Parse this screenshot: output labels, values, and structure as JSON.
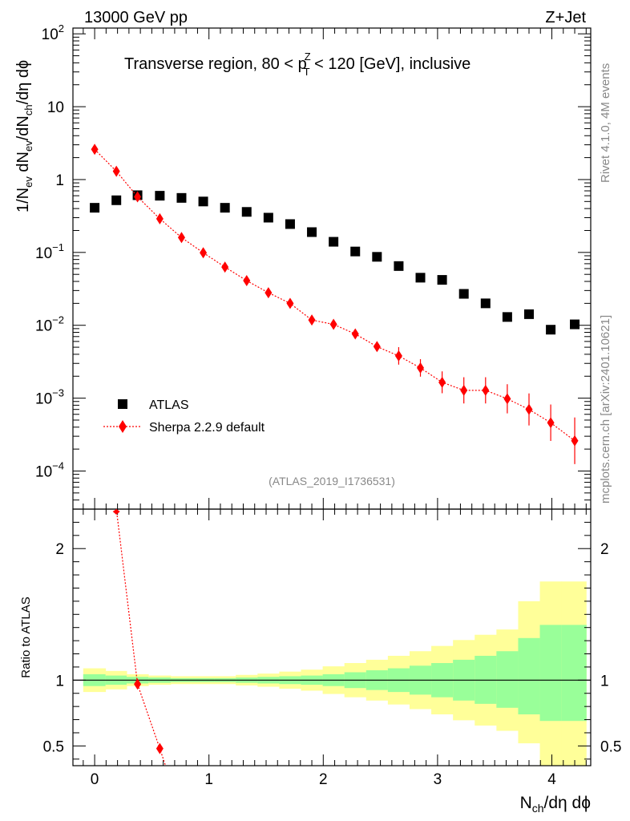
{
  "header": {
    "left": "13000 GeV pp",
    "right": "Z+Jet"
  },
  "subtitle": {
    "prefix": "Transverse region, 80 < p",
    "sup": "Z",
    "sub": "T",
    "suffix": " < 120 [GeV], inclusive"
  },
  "side_labels": {
    "rivet": "Rivet 4.1.0,  4M events",
    "mcplots": "mcplots.cern.ch [arXiv:2401.10621]"
  },
  "analysis_id": "(ATLAS_2019_I1736531)",
  "axis_labels": {
    "y_main": "1/N_ev dN_ev/dN_ch/dη dϕ",
    "y_ratio": "Ratio to ATLAS",
    "x": "N_ch/dη dϕ"
  },
  "legend": {
    "atlas": "ATLAS",
    "sherpa": "Sherpa 2.2.9 default"
  },
  "colors": {
    "data": "#000000",
    "mc": "#ff0000",
    "band_inner": "#99ff99",
    "band_outer": "#ffff99"
  },
  "chart_data": [
    {
      "type": "scatter",
      "panel": "main",
      "yscale": "log",
      "xlim": [
        -0.19,
        4.34
      ],
      "ylim": [
        3e-05,
        120
      ],
      "x_ticks": [
        0,
        1,
        2,
        3,
        4
      ],
      "y_tick_labels": [
        {
          "value": 100,
          "mant": "10",
          "exp": "2"
        },
        {
          "value": 10,
          "mant": "10",
          "exp": ""
        },
        {
          "value": 1,
          "mant": "1",
          "exp": ""
        },
        {
          "value": 0.1,
          "mant": "10",
          "exp": "−1"
        },
        {
          "value": 0.01,
          "mant": "10",
          "exp": "−2"
        },
        {
          "value": 0.001,
          "mant": "10",
          "exp": "−3"
        },
        {
          "value": 0.0001,
          "mant": "10",
          "exp": "−4"
        }
      ],
      "series": [
        {
          "name": "ATLAS",
          "marker": "square",
          "x": [
            0,
            0.19,
            0.375,
            0.57,
            0.76,
            0.95,
            1.14,
            1.33,
            1.52,
            1.71,
            1.9,
            2.09,
            2.28,
            2.47,
            2.66,
            2.85,
            3.04,
            3.23,
            3.42,
            3.61,
            3.8,
            3.99,
            4.2
          ],
          "y": [
            0.41,
            0.52,
            0.61,
            0.6,
            0.56,
            0.5,
            0.41,
            0.36,
            0.3,
            0.245,
            0.19,
            0.14,
            0.103,
            0.087,
            0.065,
            0.045,
            0.042,
            0.027,
            0.02,
            0.013,
            0.0142,
            0.0087,
            0.0103
          ]
        },
        {
          "name": "Sherpa 2.2.9 default",
          "marker": "diamond",
          "x": [
            0,
            0.19,
            0.375,
            0.57,
            0.76,
            0.95,
            1.14,
            1.33,
            1.52,
            1.71,
            1.9,
            2.09,
            2.28,
            2.47,
            2.66,
            2.85,
            3.04,
            3.23,
            3.42,
            3.61,
            3.8,
            3.99,
            4.2
          ],
          "y": [
            2.6,
            1.3,
            0.58,
            0.29,
            0.16,
            0.099,
            0.063,
            0.041,
            0.028,
            0.02,
            0.0118,
            0.0103,
            0.0076,
            0.0051,
            0.0038,
            0.0026,
            0.00165,
            0.00128,
            0.00128,
            0.00098,
            0.0007,
            0.00046,
            0.00026
          ],
          "err": [
            0,
            0,
            0,
            0,
            0,
            0,
            0,
            0,
            0,
            0,
            0,
            0,
            0,
            0,
            0.12,
            0.12,
            0.15,
            0.18,
            0.18,
            0.2,
            0.22,
            0.25,
            0.32
          ]
        }
      ]
    },
    {
      "type": "line",
      "panel": "ratio",
      "ylabel": "Ratio to ATLAS",
      "xlabel": "N_ch/dη dϕ",
      "xlim": [
        -0.19,
        4.34
      ],
      "ylim": [
        0.35,
        2.3
      ],
      "y_ticks": [
        0.5,
        1,
        2
      ],
      "y_tick_labels": [
        "0.5",
        "1",
        "2"
      ],
      "band_edges": [
        -0.1,
        0.095,
        0.28,
        0.47,
        0.665,
        0.855,
        1.045,
        1.235,
        1.425,
        1.615,
        1.805,
        1.995,
        2.185,
        2.375,
        2.565,
        2.755,
        2.945,
        3.135,
        3.325,
        3.515,
        3.705,
        3.895,
        4.085,
        4.3
      ],
      "band_inner_lo": [
        0.955,
        0.965,
        0.975,
        0.98,
        0.985,
        0.985,
        0.985,
        0.98,
        0.975,
        0.97,
        0.965,
        0.955,
        0.94,
        0.925,
        0.91,
        0.89,
        0.87,
        0.845,
        0.82,
        0.79,
        0.74,
        0.69,
        0.69
      ],
      "band_inner_hi": [
        1.045,
        1.035,
        1.025,
        1.02,
        1.015,
        1.015,
        1.015,
        1.02,
        1.025,
        1.03,
        1.035,
        1.045,
        1.06,
        1.075,
        1.09,
        1.11,
        1.13,
        1.155,
        1.185,
        1.22,
        1.32,
        1.42,
        1.42
      ],
      "band_outer_lo": [
        0.91,
        0.93,
        0.955,
        0.965,
        0.97,
        0.97,
        0.97,
        0.96,
        0.95,
        0.935,
        0.92,
        0.895,
        0.87,
        0.845,
        0.815,
        0.78,
        0.74,
        0.695,
        0.655,
        0.615,
        0.52,
        0.35,
        0.35
      ],
      "band_outer_hi": [
        1.09,
        1.07,
        1.045,
        1.035,
        1.03,
        1.03,
        1.03,
        1.04,
        1.05,
        1.065,
        1.08,
        1.105,
        1.13,
        1.155,
        1.185,
        1.22,
        1.26,
        1.305,
        1.345,
        1.385,
        1.6,
        1.75,
        1.75
      ],
      "ref_line": 1,
      "series": [
        {
          "name": "Sherpa 2.2.9 default / ATLAS",
          "x": [
            0.19,
            0.375,
            0.57,
            0.62
          ],
          "y": [
            2.3,
            0.97,
            0.48,
            0.35
          ],
          "points_x": [
            0.375,
            0.57
          ],
          "points_y": [
            0.97,
            0.48
          ]
        }
      ]
    }
  ]
}
